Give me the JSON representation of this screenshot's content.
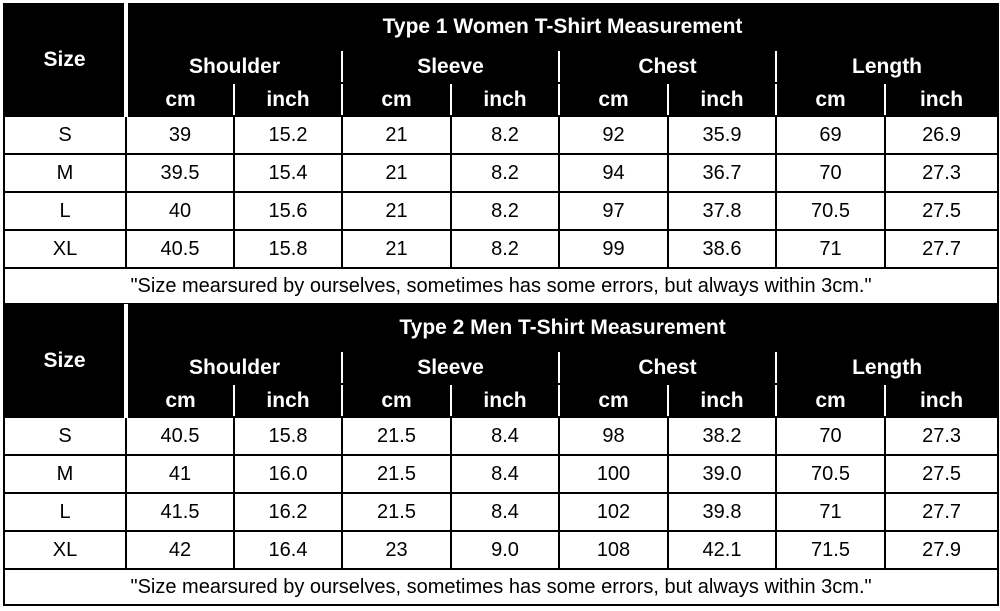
{
  "tables": [
    {
      "title": "Type 1 Women T-Shirt Measurement",
      "size_header": "Size",
      "groups": [
        "Shoulder",
        "Sleeve",
        "Chest",
        "Length"
      ],
      "units": [
        "cm",
        "inch",
        "cm",
        "inch",
        "cm",
        "inch",
        "cm",
        "inch"
      ],
      "rows": [
        {
          "size": "S",
          "values": [
            "39",
            "15.2",
            "21",
            "8.2",
            "92",
            "35.9",
            "69",
            "26.9"
          ]
        },
        {
          "size": "M",
          "values": [
            "39.5",
            "15.4",
            "21",
            "8.2",
            "94",
            "36.7",
            "70",
            "27.3"
          ]
        },
        {
          "size": "L",
          "values": [
            "40",
            "15.6",
            "21",
            "8.2",
            "97",
            "37.8",
            "70.5",
            "27.5"
          ]
        },
        {
          "size": "XL",
          "values": [
            "40.5",
            "15.8",
            "21",
            "8.2",
            "99",
            "38.6",
            "71",
            "27.7"
          ]
        }
      ],
      "note": "\"Size mearsured by ourselves, sometimes has some errors, but always within 3cm.\""
    },
    {
      "title": "Type 2 Men T-Shirt Measurement",
      "size_header": "Size",
      "groups": [
        "Shoulder",
        "Sleeve",
        "Chest",
        "Length"
      ],
      "units": [
        "cm",
        "inch",
        "cm",
        "inch",
        "cm",
        "inch",
        "cm",
        "inch"
      ],
      "rows": [
        {
          "size": "S",
          "values": [
            "40.5",
            "15.8",
            "21.5",
            "8.4",
            "98",
            "38.2",
            "70",
            "27.3"
          ]
        },
        {
          "size": "M",
          "values": [
            "41",
            "16.0",
            "21.5",
            "8.4",
            "100",
            "39.0",
            "70.5",
            "27.5"
          ]
        },
        {
          "size": "L",
          "values": [
            "41.5",
            "16.2",
            "21.5",
            "8.4",
            "102",
            "39.8",
            "71",
            "27.7"
          ]
        },
        {
          "size": "XL",
          "values": [
            "42",
            "16.4",
            "23",
            "9.0",
            "108",
            "42.1",
            "71.5",
            "27.9"
          ]
        }
      ],
      "note": "\"Size mearsured by ourselves, sometimes has some errors, but always within 3cm.\""
    }
  ]
}
